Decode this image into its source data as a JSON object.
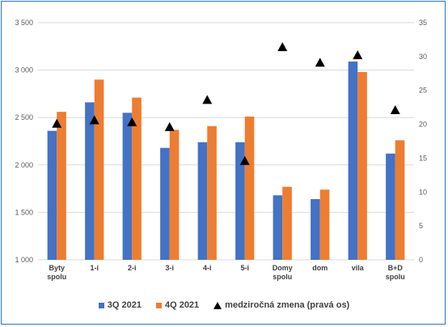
{
  "colors": {
    "series1": "#4472c4",
    "series2": "#ed7d31",
    "marker": "#000000",
    "grid": "#d9d9d9",
    "border": "#2e75b6"
  },
  "chart_data": {
    "type": "bar",
    "categories": [
      [
        "Byty",
        "spolu"
      ],
      [
        "1-i"
      ],
      [
        "2-i"
      ],
      [
        "3-i"
      ],
      [
        "4-i"
      ],
      [
        "5-i"
      ],
      [
        "Domy",
        "spolu"
      ],
      [
        "dom"
      ],
      [
        "vila"
      ],
      [
        "B+D",
        "spolu"
      ]
    ],
    "series": [
      {
        "name": "3Q 2021",
        "type": "bar",
        "axis": "left",
        "values": [
          2360,
          2660,
          2550,
          2180,
          2240,
          2240,
          1680,
          1640,
          3090,
          2120
        ]
      },
      {
        "name": "4Q 2021",
        "type": "bar",
        "axis": "left",
        "values": [
          2560,
          2900,
          2710,
          2370,
          2410,
          2510,
          1770,
          1740,
          2980,
          2260
        ]
      },
      {
        "name": "medziročná zmena (pravá os)",
        "type": "scatter",
        "marker": "triangle",
        "axis": "right",
        "values": [
          20.1,
          20.6,
          20.3,
          19.6,
          23.6,
          14.6,
          31.4,
          29.1,
          30.2,
          22.1
        ]
      }
    ],
    "y_left": {
      "ylim": [
        1000,
        3500
      ],
      "ticks": [
        1000,
        1500,
        2000,
        2500,
        3000,
        3500
      ],
      "tick_labels": [
        "1 000",
        "1 500",
        "2 000",
        "2 500",
        "3 000",
        "3 500"
      ]
    },
    "y_right": {
      "ylim": [
        0,
        35
      ],
      "ticks": [
        0,
        5,
        10,
        15,
        20,
        25,
        30,
        35
      ],
      "tick_labels": [
        "0",
        "5",
        "10",
        "15",
        "20",
        "25",
        "30",
        "35"
      ]
    },
    "grid": true,
    "legend": "bottom"
  },
  "legend": {
    "s1": "3Q 2021",
    "s2": "4Q 2021",
    "s3": "medziročná zmena (pravá os)"
  }
}
